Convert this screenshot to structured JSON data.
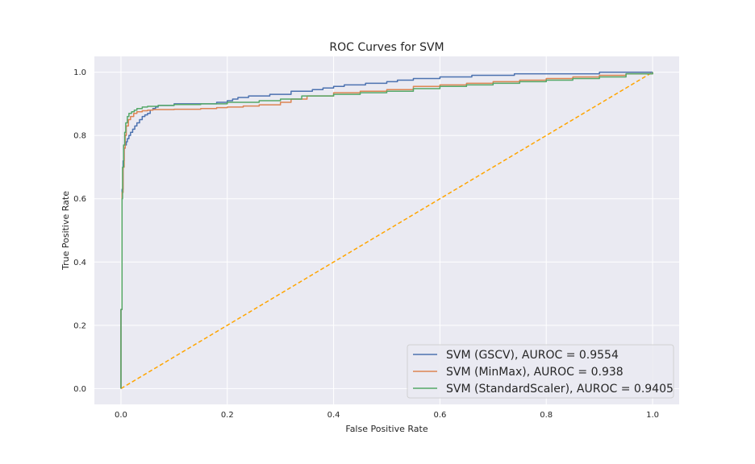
{
  "chart_data": {
    "type": "line",
    "title": "ROC Curves for SVM",
    "xlabel": "False Positive Rate",
    "ylabel": "True Positive Rate",
    "xlim": [
      -0.05,
      1.05
    ],
    "ylim": [
      -0.05,
      1.05
    ],
    "xticks": [
      "0.0",
      "0.2",
      "0.4",
      "0.6",
      "0.8",
      "1.0"
    ],
    "yticks": [
      "0.0",
      "0.2",
      "0.4",
      "0.6",
      "0.8",
      "1.0"
    ],
    "grid": true,
    "legend_position": "lower-right",
    "series": [
      {
        "name": "SVM (GSCV), AUROC = 0.9554",
        "color": "#4c72b0",
        "step": true,
        "x": [
          0,
          0,
          0.002,
          0.002,
          0.004,
          0.004,
          0.006,
          0.006,
          0.008,
          0.01,
          0.012,
          0.015,
          0.018,
          0.022,
          0.026,
          0.03,
          0.035,
          0.04,
          0.045,
          0.05,
          0.055,
          0.06,
          0.065,
          0.07,
          0.08,
          0.1,
          0.12,
          0.15,
          0.18,
          0.2,
          0.21,
          0.22,
          0.24,
          0.28,
          0.32,
          0.36,
          0.38,
          0.4,
          0.42,
          0.46,
          0.5,
          0.52,
          0.55,
          0.6,
          0.66,
          0.74,
          0.82,
          0.9,
          0.96,
          1.0
        ],
        "y": [
          0,
          0.25,
          0.57,
          0.63,
          0.68,
          0.72,
          0.74,
          0.76,
          0.77,
          0.78,
          0.79,
          0.8,
          0.81,
          0.82,
          0.83,
          0.84,
          0.85,
          0.86,
          0.865,
          0.87,
          0.88,
          0.885,
          0.89,
          0.895,
          0.895,
          0.9,
          0.9,
          0.9,
          0.905,
          0.91,
          0.915,
          0.92,
          0.925,
          0.93,
          0.94,
          0.945,
          0.95,
          0.955,
          0.96,
          0.965,
          0.97,
          0.975,
          0.98,
          0.985,
          0.99,
          0.995,
          0.995,
          1.0,
          1.0,
          1.0
        ]
      },
      {
        "name": "SVM (MinMax), AUROC = 0.938",
        "color": "#dd8452",
        "step": true,
        "x": [
          0,
          0,
          0.002,
          0.004,
          0.006,
          0.008,
          0.01,
          0.014,
          0.018,
          0.024,
          0.03,
          0.04,
          0.05,
          0.06,
          0.1,
          0.15,
          0.18,
          0.2,
          0.23,
          0.26,
          0.3,
          0.32,
          0.35,
          0.4,
          0.45,
          0.5,
          0.55,
          0.6,
          0.65,
          0.7,
          0.75,
          0.8,
          0.85,
          0.9,
          0.95,
          1.0
        ],
        "y": [
          0,
          0.25,
          0.62,
          0.7,
          0.76,
          0.8,
          0.83,
          0.85,
          0.86,
          0.87,
          0.875,
          0.878,
          0.88,
          0.882,
          0.883,
          0.885,
          0.888,
          0.89,
          0.893,
          0.897,
          0.905,
          0.915,
          0.925,
          0.935,
          0.94,
          0.945,
          0.955,
          0.96,
          0.965,
          0.97,
          0.975,
          0.98,
          0.985,
          0.99,
          0.995,
          1.0
        ]
      },
      {
        "name": "SVM (StandardScaler), AUROC = 0.9405",
        "color": "#55a868",
        "step": true,
        "x": [
          0,
          0,
          0.002,
          0.003,
          0.005,
          0.007,
          0.009,
          0.012,
          0.015,
          0.02,
          0.025,
          0.03,
          0.04,
          0.05,
          0.07,
          0.1,
          0.15,
          0.2,
          0.26,
          0.3,
          0.34,
          0.4,
          0.45,
          0.5,
          0.55,
          0.6,
          0.65,
          0.7,
          0.75,
          0.8,
          0.85,
          0.9,
          0.95,
          1.0
        ],
        "y": [
          0,
          0.25,
          0.6,
          0.7,
          0.77,
          0.81,
          0.84,
          0.86,
          0.87,
          0.875,
          0.88,
          0.885,
          0.89,
          0.892,
          0.895,
          0.898,
          0.9,
          0.905,
          0.91,
          0.915,
          0.925,
          0.93,
          0.935,
          0.94,
          0.948,
          0.955,
          0.96,
          0.965,
          0.97,
          0.975,
          0.98,
          0.985,
          0.995,
          1.0
        ]
      },
      {
        "name": "",
        "color": "#ffa500",
        "dashed": true,
        "x": [
          0,
          1
        ],
        "y": [
          0,
          1
        ]
      }
    ]
  }
}
